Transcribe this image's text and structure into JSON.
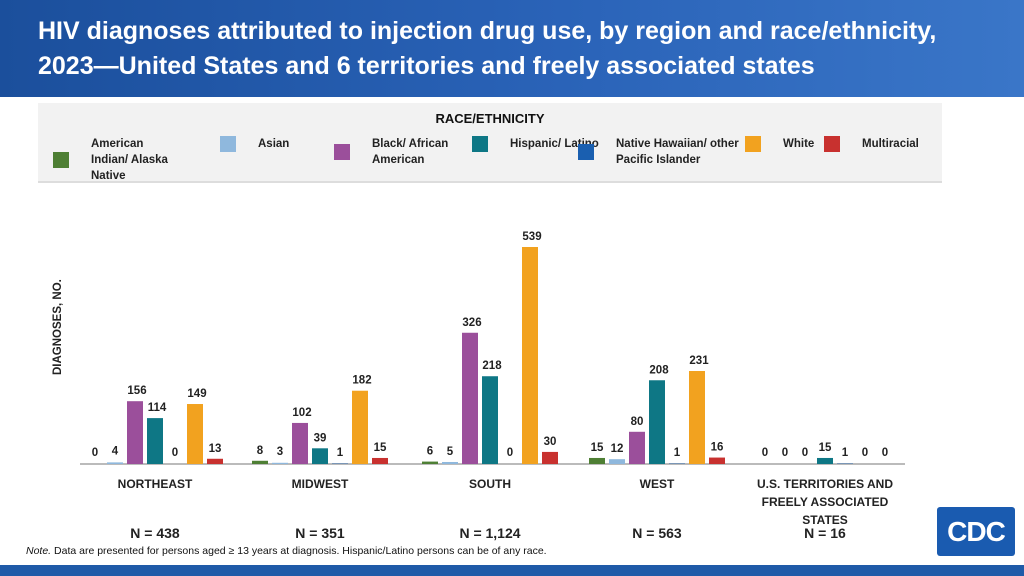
{
  "title": "HIV diagnoses attributed to injection drug use, by region and race/ethnicity, 2023—United States and 6 territories and freely associated states",
  "legend": {
    "title": "RACE/ETHNICITY"
  },
  "note_label": "Note.",
  "note": " Data are presented for persons aged ≥ 13 years at diagnosis. Hispanic/Latino persons can be of any race.",
  "logo": "CDC",
  "chart_data": {
    "type": "bar",
    "title": "HIV diagnoses attributed to injection drug use, by region and race/ethnicity, 2023—United States and 6 territories and freely associated states",
    "ylabel": "DIAGNOSES, NO.",
    "xlabel": "",
    "ylim": [
      0,
      539
    ],
    "grid": false,
    "legend_position": "top",
    "categories": [
      "NORTHEAST",
      "MIDWEST",
      "SOUTH",
      "WEST",
      "U.S. TERRITORIES AND FREELY ASSOCIATED STATES"
    ],
    "totals": [
      "N = 438",
      "N = 351",
      "N = 1,124",
      "N = 563",
      "N = 16"
    ],
    "series": [
      {
        "name": "American Indian/ Alaska Native",
        "color": "#4e7f34",
        "values": [
          0,
          8,
          6,
          15,
          0
        ]
      },
      {
        "name": "Asian",
        "color": "#8fb8dd",
        "values": [
          4,
          3,
          5,
          12,
          0
        ]
      },
      {
        "name": "Black/ African American",
        "color": "#9b4f9b",
        "values": [
          156,
          102,
          326,
          80,
          0
        ]
      },
      {
        "name": "Hispanic/ Latino",
        "color": "#0e7785",
        "values": [
          114,
          39,
          218,
          208,
          15
        ]
      },
      {
        "name": "Native Hawaiian/ other Pacific Islander",
        "color": "#1a5fb0",
        "values": [
          0,
          1,
          0,
          1,
          1
        ]
      },
      {
        "name": "White",
        "color": "#f2a21f",
        "values": [
          149,
          182,
          539,
          231,
          0
        ]
      },
      {
        "name": "Multiracial",
        "color": "#c8312f",
        "values": [
          13,
          15,
          30,
          16,
          0
        ]
      }
    ]
  }
}
